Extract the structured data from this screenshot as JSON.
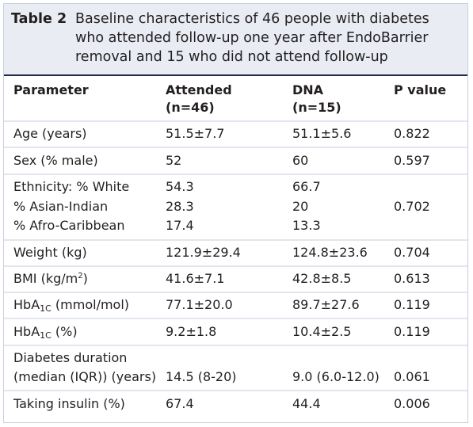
{
  "caption": {
    "label": "Table 2",
    "text": "Baseline characteristics of 46 people with diabetes who attended follow-up one year after EndoBarrier removal and 15 who did not attend follow-up"
  },
  "headers": {
    "parameter": "Parameter",
    "attended": "Attended",
    "attended_n": "(n=46)",
    "dna": "DNA",
    "dna_n": "(n=15)",
    "pvalue": "P value"
  },
  "rows": {
    "age": {
      "param": "Age (years)",
      "attended": "51.5±7.7",
      "dna": "51.1±5.6",
      "p": "0.822"
    },
    "sex": {
      "param": "Sex (% male)",
      "attended": "52",
      "dna": "60",
      "p": "0.597"
    },
    "ethnicity": {
      "param1": "Ethnicity: % White",
      "att1": "54.3",
      "dna1": "66.7",
      "param2": "% Asian-Indian",
      "att2": "28.3",
      "dna2": "20",
      "param3": "% Afro-Caribbean",
      "att3": "17.4",
      "dna3": "13.3",
      "p": "0.702"
    },
    "weight": {
      "param": "Weight (kg)",
      "attended": "121.9±29.4",
      "dna": "124.8±23.6",
      "p": "0.704"
    },
    "bmi": {
      "param_pre": "BMI (kg/m",
      "param_sup": "2",
      "param_post": ")",
      "attended": "41.6±7.1",
      "dna": "42.8±8.5",
      "p": "0.613"
    },
    "hba1c_mmol": {
      "param_pre": "HbA",
      "param_sub": "1C",
      "param_post": " (mmol/mol)",
      "attended": "77.1±20.0",
      "dna": "89.7±27.6",
      "p": "0.119"
    },
    "hba1c_pct": {
      "param_pre": "HbA",
      "param_sub": "1C",
      "param_post": " (%)",
      "attended": "9.2±1.8",
      "dna": "10.4±2.5",
      "p": "0.119"
    },
    "duration": {
      "param1": "Diabetes duration",
      "param2": "(median (IQR)) (years)",
      "attended": "14.5 (8-20)",
      "dna": "9.0 (6.0-12.0)",
      "p": "0.061"
    },
    "insulin": {
      "param": "Taking insulin (%)",
      "attended": "67.4",
      "dna": "44.4",
      "p": "0.006"
    }
  }
}
